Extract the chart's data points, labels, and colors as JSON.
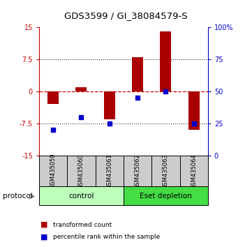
{
  "title": "GDS3599 / GI_38084579-S",
  "samples": [
    "GSM435059",
    "GSM435060",
    "GSM435061",
    "GSM435062",
    "GSM435063",
    "GSM435064"
  ],
  "red_bars": [
    -3.0,
    1.0,
    -6.5,
    8.0,
    14.0,
    -9.0
  ],
  "blue_pct": [
    20,
    30,
    25,
    45,
    50,
    25
  ],
  "ylim_left": [
    -15,
    15
  ],
  "ylim_right": [
    0,
    100
  ],
  "yticks_left": [
    -15,
    -7.5,
    0,
    7.5,
    15
  ],
  "yticks_right": [
    0,
    25,
    50,
    75,
    100
  ],
  "ytick_labels_right": [
    "0",
    "25",
    "50",
    "75",
    "100%"
  ],
  "ytick_labels_left": [
    "-15",
    "-7.5",
    "0",
    "7.5",
    "15"
  ],
  "left_axis_color": "#cc0000",
  "right_axis_color": "#0000cc",
  "bar_color": "#aa0000",
  "square_color": "#0000cc",
  "hline_color": "#cc0000",
  "dotted_line_color": "#333333",
  "protocol_groups": [
    {
      "label": "control",
      "start": 0,
      "end": 3,
      "color": "#bbffbb"
    },
    {
      "label": "Eset depletion",
      "start": 3,
      "end": 6,
      "color": "#44dd44"
    }
  ],
  "protocol_label": "protocol",
  "legend_red": "transformed count",
  "legend_blue": "percentile rank within the sample",
  "bg_color": "#ffffff",
  "tick_area_color": "#cccccc"
}
